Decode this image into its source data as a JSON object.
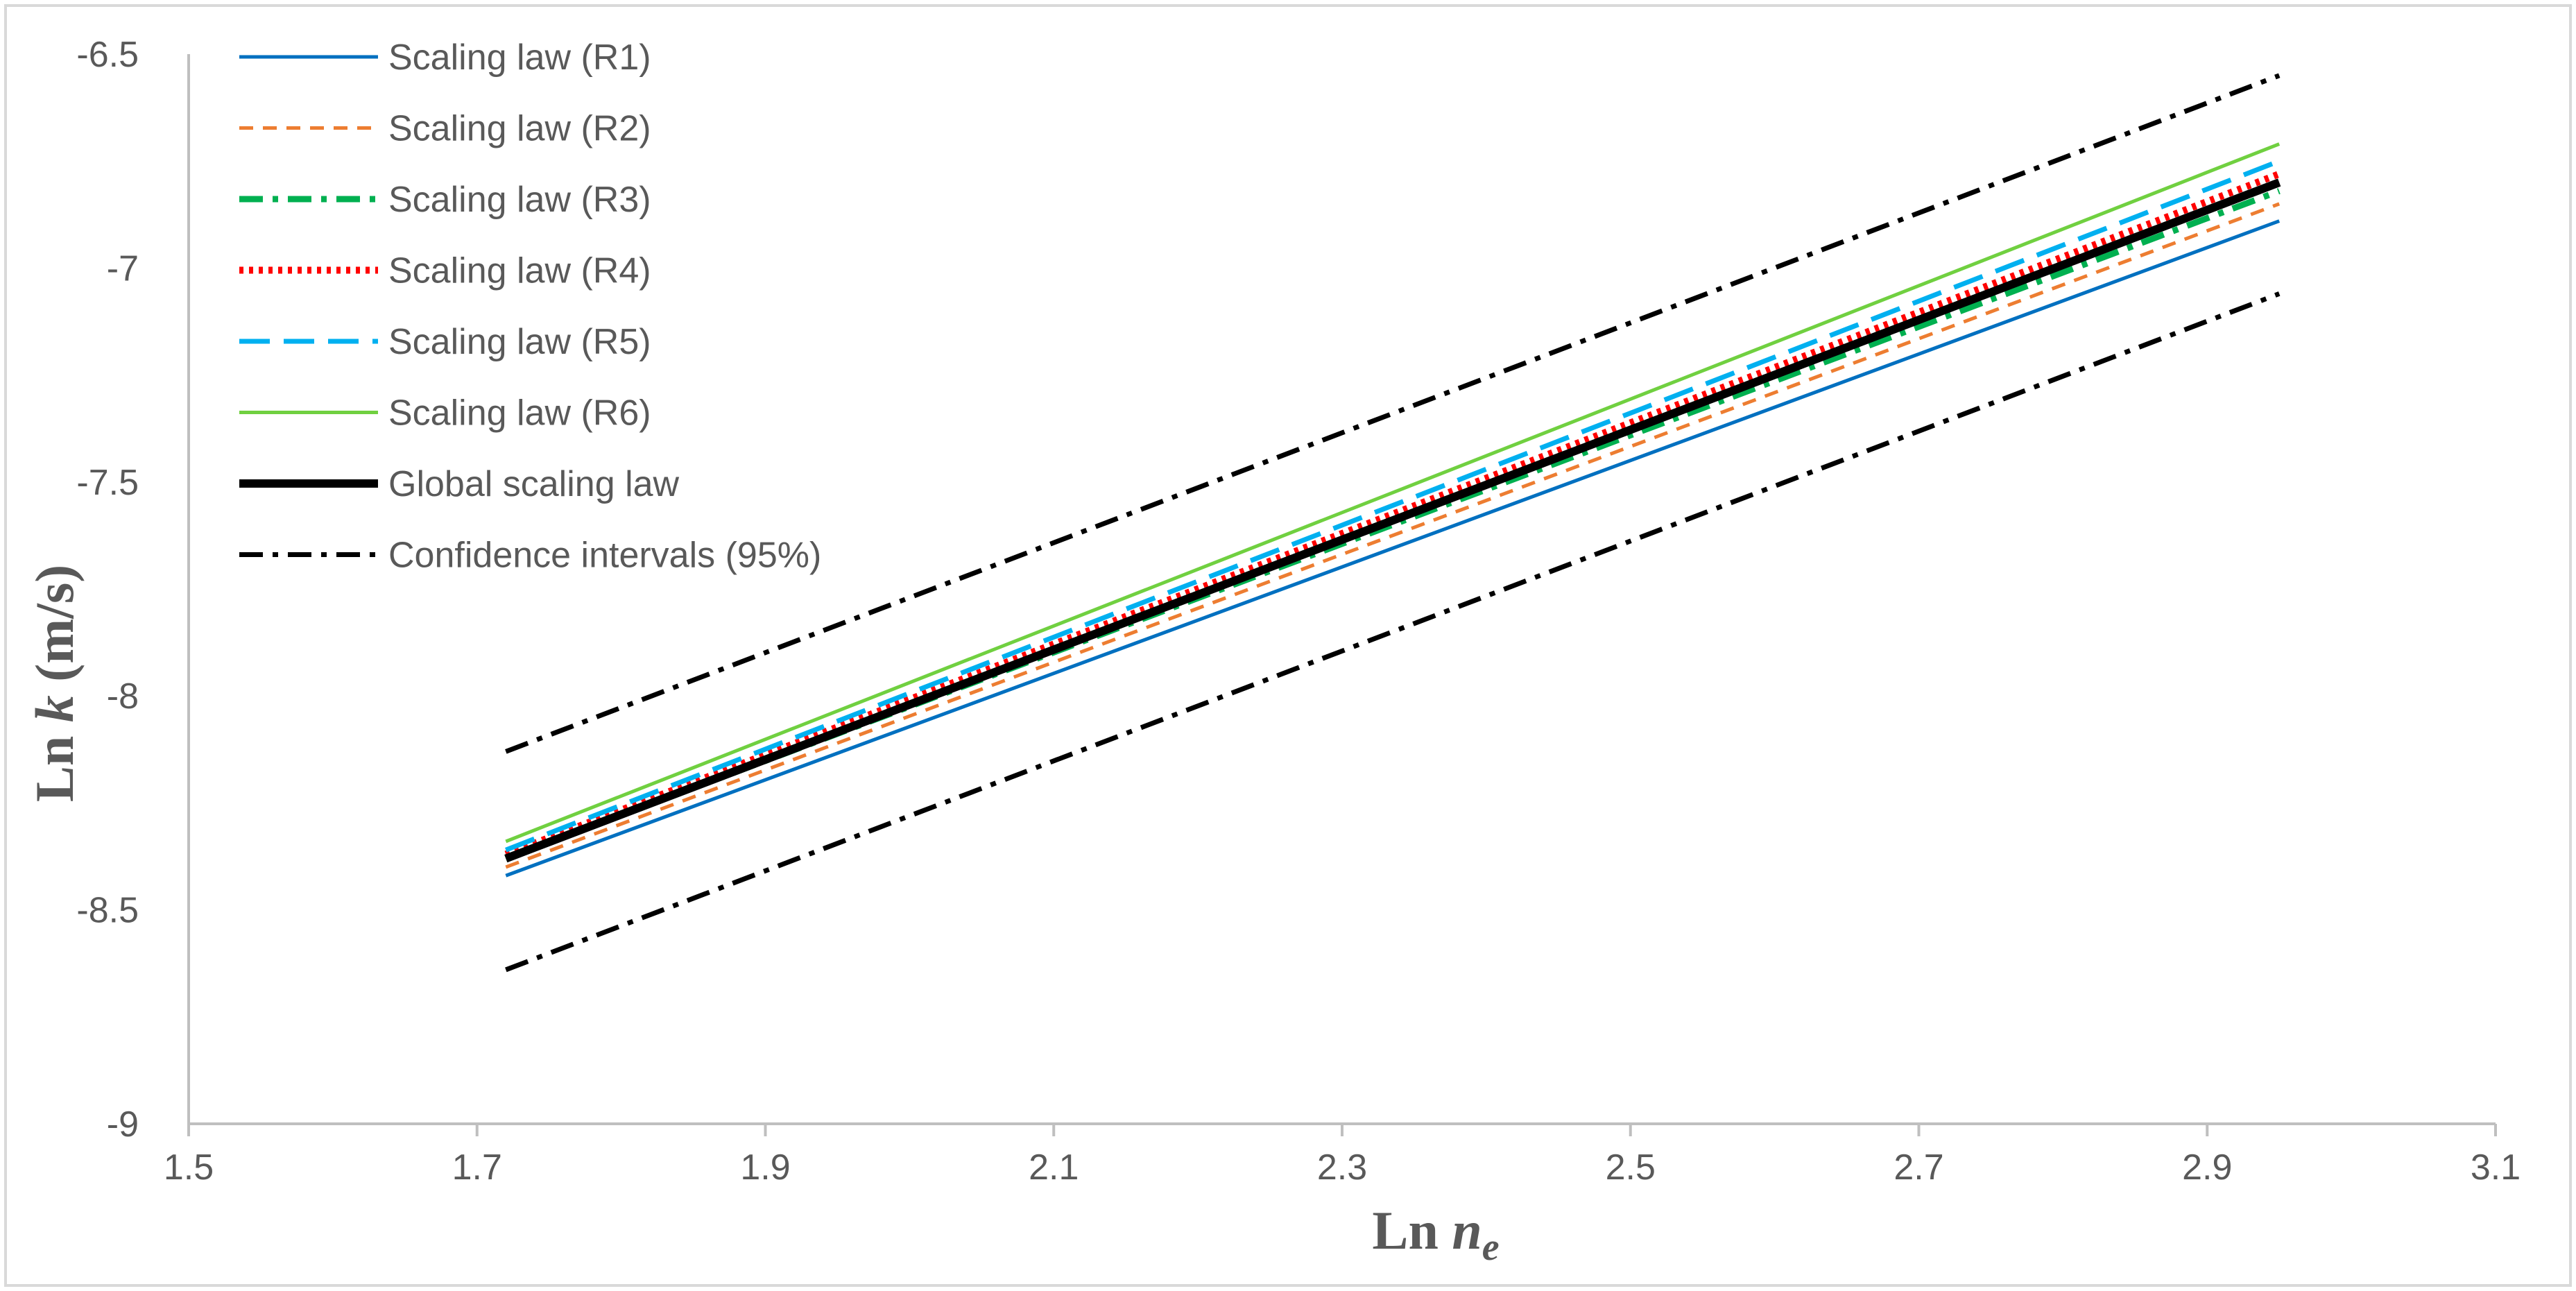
{
  "chart_data": {
    "type": "line",
    "xlabel_main": "Ln ",
    "xlabel_italic": "n",
    "xlabel_sub": "e",
    "ylabel_main": "Ln ",
    "ylabel_italic": "k",
    "ylabel_unit": " (m/s)",
    "xlim": [
      1.5,
      3.1
    ],
    "ylim": [
      -9,
      -6.5
    ],
    "x_ticks": [
      1.5,
      1.7,
      1.9,
      2.1,
      2.3,
      2.5,
      2.7,
      2.9,
      3.1
    ],
    "y_ticks": [
      -6.5,
      -7,
      -7.5,
      -8,
      -8.5,
      -9
    ],
    "x_tick_labels": [
      "1.5",
      "1.7",
      "1.9",
      "2.1",
      "2.3",
      "2.5",
      "2.7",
      "2.9",
      "3.1"
    ],
    "y_tick_labels": [
      "-6.5",
      "-7",
      "-7.5",
      "-8",
      "-8.5",
      "-9"
    ],
    "grid": false,
    "legend_position": "top-left",
    "series": [
      {
        "name": "Scaling law (R1)",
        "color": "#0070C0",
        "style": "solid",
        "x": [
          1.72,
          2.95
        ],
        "y": [
          -8.42,
          -6.89
        ]
      },
      {
        "name": "Scaling law (R2)",
        "color": "#ED7D31",
        "style": "dash",
        "x": [
          1.72,
          2.95
        ],
        "y": [
          -8.4,
          -6.85
        ]
      },
      {
        "name": "Scaling law (R3)",
        "color": "#00B050",
        "style": "dashdot",
        "x": [
          1.72,
          2.95
        ],
        "y": [
          -8.38,
          -6.82
        ]
      },
      {
        "name": "Scaling law (R4)",
        "color": "#FF0000",
        "style": "dot",
        "x": [
          1.72,
          2.95
        ],
        "y": [
          -8.37,
          -6.78
        ]
      },
      {
        "name": "Scaling law (R5)",
        "color": "#00B0F0",
        "style": "longdash",
        "x": [
          1.72,
          2.95
        ],
        "y": [
          -8.36,
          -6.75
        ]
      },
      {
        "name": "Scaling law (R6)",
        "color": "#70D040",
        "style": "solid",
        "x": [
          1.72,
          2.95
        ],
        "y": [
          -8.34,
          -6.71
        ]
      },
      {
        "name": "Global scaling law",
        "color": "#000000",
        "style": "bold",
        "x": [
          1.72,
          2.95
        ],
        "y": [
          -8.38,
          -6.8
        ]
      },
      {
        "name": "Confidence intervals (95%)",
        "color": "#000000",
        "style": "dashdot",
        "x": [
          1.72,
          2.95
        ],
        "y": [
          -8.13,
          -6.55
        ]
      },
      {
        "name": "",
        "color": "#000000",
        "style": "dashdot",
        "x": [
          1.72,
          2.95
        ],
        "y": [
          -8.64,
          -7.06
        ]
      }
    ]
  }
}
